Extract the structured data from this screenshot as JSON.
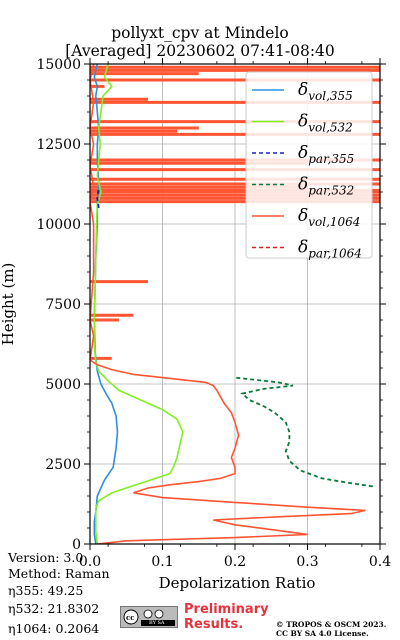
{
  "header": {
    "title_line1": "pollyxt_cpv at Mindelo",
    "title_line2": "[Averaged] 20230602 07:41-08:40"
  },
  "footer": {
    "version": "Version: 3.0",
    "method": "Method: Raman",
    "eta355": "η355:  49.25",
    "eta532": "η532: 21.8302",
    "eta1064": "η1064: 0.2064",
    "preliminary_line1": "Preliminary",
    "preliminary_line2": "Results.",
    "copyright_line1": "© TROPOS & OSCM 2023.",
    "copyright_line2": "CC BY SA 4.0 License.",
    "license_badge": "cc",
    "license_badge_sub": "BY SA"
  },
  "colors": {
    "vol355": "#2d8fe0",
    "vol532": "#80f020",
    "par355": "#1122cc",
    "par532": "#0a7a3a",
    "vol1064": "#ff5533",
    "par1064": "#dd2222",
    "grid": "#b0b0b0"
  },
  "chart_data": {
    "type": "line",
    "xlabel": "Depolarization Ratio",
    "ylabel": "Height (m)",
    "xlim": [
      0,
      0.4
    ],
    "ylim": [
      0,
      15000
    ],
    "xticks": [
      0.0,
      0.1,
      0.2,
      0.3,
      0.4
    ],
    "xtick_labels": [
      "0.0",
      "0.1",
      "0.2",
      "0.3",
      "0.4"
    ],
    "yticks": [
      0,
      2500,
      5000,
      7500,
      10000,
      12500,
      15000
    ],
    "ytick_labels": [
      "0",
      "2500",
      "5000",
      "7500",
      "10000",
      "12500",
      "15000"
    ],
    "grid": true,
    "legend_position": "top-right",
    "series": [
      {
        "name": "δvol,355",
        "legend_base": "δ",
        "legend_sub": "vol,355",
        "color_key": "vol355",
        "style": "solid",
        "points": [
          [
            0.008,
            0
          ],
          [
            0.006,
            300
          ],
          [
            0.006,
            700
          ],
          [
            0.008,
            1000
          ],
          [
            0.01,
            1500
          ],
          [
            0.02,
            2000
          ],
          [
            0.032,
            2400
          ],
          [
            0.036,
            3000
          ],
          [
            0.038,
            3500
          ],
          [
            0.036,
            4000
          ],
          [
            0.03,
            4400
          ],
          [
            0.022,
            4700
          ],
          [
            0.015,
            5000
          ],
          [
            0.01,
            5400
          ],
          [
            0.007,
            6000
          ],
          [
            0.006,
            7000
          ],
          [
            0.007,
            8000
          ],
          [
            0.008,
            9000
          ],
          [
            0.01,
            10000
          ],
          [
            0.01,
            10700
          ],
          [
            0.012,
            11300
          ],
          [
            0.01,
            12000
          ],
          [
            0.01,
            12500
          ],
          [
            0.012,
            13000
          ],
          [
            0.01,
            13500
          ],
          [
            0.008,
            14000
          ],
          [
            0.01,
            14300
          ],
          [
            0.006,
            14600
          ],
          [
            0.01,
            15000
          ]
        ]
      },
      {
        "name": "δvol,532",
        "legend_base": "δ",
        "legend_sub": "vol,532",
        "color_key": "vol532",
        "style": "solid",
        "points": [
          [
            0.01,
            0
          ],
          [
            0.008,
            400
          ],
          [
            0.008,
            1100
          ],
          [
            0.01,
            1250
          ],
          [
            0.012,
            1350
          ],
          [
            0.03,
            1600
          ],
          [
            0.07,
            1900
          ],
          [
            0.11,
            2200
          ],
          [
            0.115,
            2400
          ],
          [
            0.12,
            2700
          ],
          [
            0.125,
            3200
          ],
          [
            0.128,
            3500
          ],
          [
            0.12,
            3900
          ],
          [
            0.1,
            4200
          ],
          [
            0.07,
            4500
          ],
          [
            0.04,
            4800
          ],
          [
            0.025,
            5100
          ],
          [
            0.012,
            5400
          ],
          [
            0.008,
            5700
          ],
          [
            0.006,
            6200
          ],
          [
            0.006,
            7000
          ],
          [
            0.007,
            8000
          ],
          [
            0.008,
            9000
          ],
          [
            0.009,
            10000
          ],
          [
            0.01,
            10600
          ],
          [
            0.015,
            11000
          ],
          [
            0.01,
            11500
          ],
          [
            0.012,
            12000
          ],
          [
            0.014,
            12500
          ],
          [
            0.012,
            13000
          ],
          [
            0.015,
            13500
          ],
          [
            0.018,
            14000
          ],
          [
            0.03,
            14300
          ],
          [
            0.02,
            14600
          ],
          [
            0.025,
            15000
          ]
        ]
      },
      {
        "name": "δpar,355",
        "legend_base": "δ",
        "legend_sub": "par,355",
        "color_key": "par355",
        "style": "dashed",
        "points": [
          [
            0.012,
            10500
          ],
          [
            0.01,
            10800
          ],
          [
            0.012,
            11100
          ]
        ]
      },
      {
        "name": "δpar,532",
        "legend_base": "δ",
        "legend_sub": "par,532",
        "color_key": "par532",
        "style": "dashed",
        "points": [
          [
            0.39,
            1800
          ],
          [
            0.36,
            1900
          ],
          [
            0.32,
            2050
          ],
          [
            0.29,
            2300
          ],
          [
            0.275,
            2600
          ],
          [
            0.27,
            2900
          ],
          [
            0.275,
            3200
          ],
          [
            0.275,
            3500
          ],
          [
            0.27,
            3800
          ],
          [
            0.255,
            4100
          ],
          [
            0.24,
            4300
          ],
          [
            0.22,
            4500
          ],
          [
            0.21,
            4700
          ],
          [
            0.24,
            4850
          ],
          [
            0.28,
            4950
          ],
          [
            0.26,
            5050
          ],
          [
            0.22,
            5150
          ],
          [
            0.2,
            5200
          ]
        ]
      },
      {
        "name": "δvol,1064",
        "legend_base": "δ",
        "legend_sub": "vol,1064",
        "color_key": "vol1064",
        "style": "solid",
        "points": [
          [
            0.01,
            0
          ],
          [
            0.05,
            100
          ],
          [
            0.2,
            200
          ],
          [
            0.3,
            300
          ],
          [
            0.25,
            450
          ],
          [
            0.2,
            600
          ],
          [
            0.17,
            750
          ],
          [
            0.26,
            850
          ],
          [
            0.36,
            950
          ],
          [
            0.38,
            1050
          ],
          [
            0.3,
            1150
          ],
          [
            0.2,
            1300
          ],
          [
            0.1,
            1450
          ],
          [
            0.06,
            1600
          ],
          [
            0.08,
            1750
          ],
          [
            0.11,
            1850
          ],
          [
            0.15,
            1950
          ],
          [
            0.18,
            2050
          ],
          [
            0.2,
            2200
          ],
          [
            0.2,
            2400
          ],
          [
            0.195,
            2700
          ],
          [
            0.2,
            3000
          ],
          [
            0.205,
            3400
          ],
          [
            0.2,
            3800
          ],
          [
            0.195,
            4100
          ],
          [
            0.185,
            4400
          ],
          [
            0.18,
            4600
          ],
          [
            0.175,
            4800
          ],
          [
            0.17,
            4950
          ],
          [
            0.16,
            5050
          ],
          [
            0.14,
            5100
          ],
          [
            0.1,
            5200
          ],
          [
            0.06,
            5300
          ],
          [
            0.03,
            5450
          ],
          [
            0.01,
            5600
          ],
          [
            0.0,
            5750
          ],
          [
            0.005,
            6500
          ],
          [
            0.0,
            7000
          ],
          [
            0.005,
            8500
          ],
          [
            0.005,
            10000
          ],
          [
            0.0,
            10700
          ],
          [
            0.005,
            11200
          ],
          [
            0.0,
            11800
          ],
          [
            0.005,
            12500
          ],
          [
            0.0,
            13000
          ],
          [
            0.005,
            13800
          ],
          [
            0.0,
            14500
          ],
          [
            0.005,
            15000
          ]
        ]
      },
      {
        "name": "δpar,1064",
        "legend_base": "δ",
        "legend_sub": "par,1064",
        "color_key": "par1064",
        "style": "dashed",
        "points": []
      }
    ],
    "noise_spikes_vol1064": [
      [
        5800,
        0.03
      ],
      [
        7000,
        0.04
      ],
      [
        7150,
        0.06
      ],
      [
        8200,
        0.08
      ],
      [
        10700,
        0.4
      ],
      [
        10800,
        0.4
      ],
      [
        10900,
        0.4
      ],
      [
        11000,
        0.4
      ],
      [
        11050,
        0.4
      ],
      [
        11150,
        0.3
      ],
      [
        11250,
        0.4
      ],
      [
        11400,
        0.4
      ],
      [
        11700,
        0.4
      ],
      [
        11900,
        0.3
      ],
      [
        12000,
        0.4
      ],
      [
        12800,
        0.4
      ],
      [
        12900,
        0.12
      ],
      [
        13000,
        0.15
      ],
      [
        13200,
        0.4
      ],
      [
        13800,
        0.4
      ],
      [
        13900,
        0.08
      ],
      [
        14300,
        0.02
      ],
      [
        14500,
        0.4
      ],
      [
        14700,
        0.15
      ],
      [
        14800,
        0.4
      ],
      [
        14900,
        0.4
      ]
    ]
  }
}
